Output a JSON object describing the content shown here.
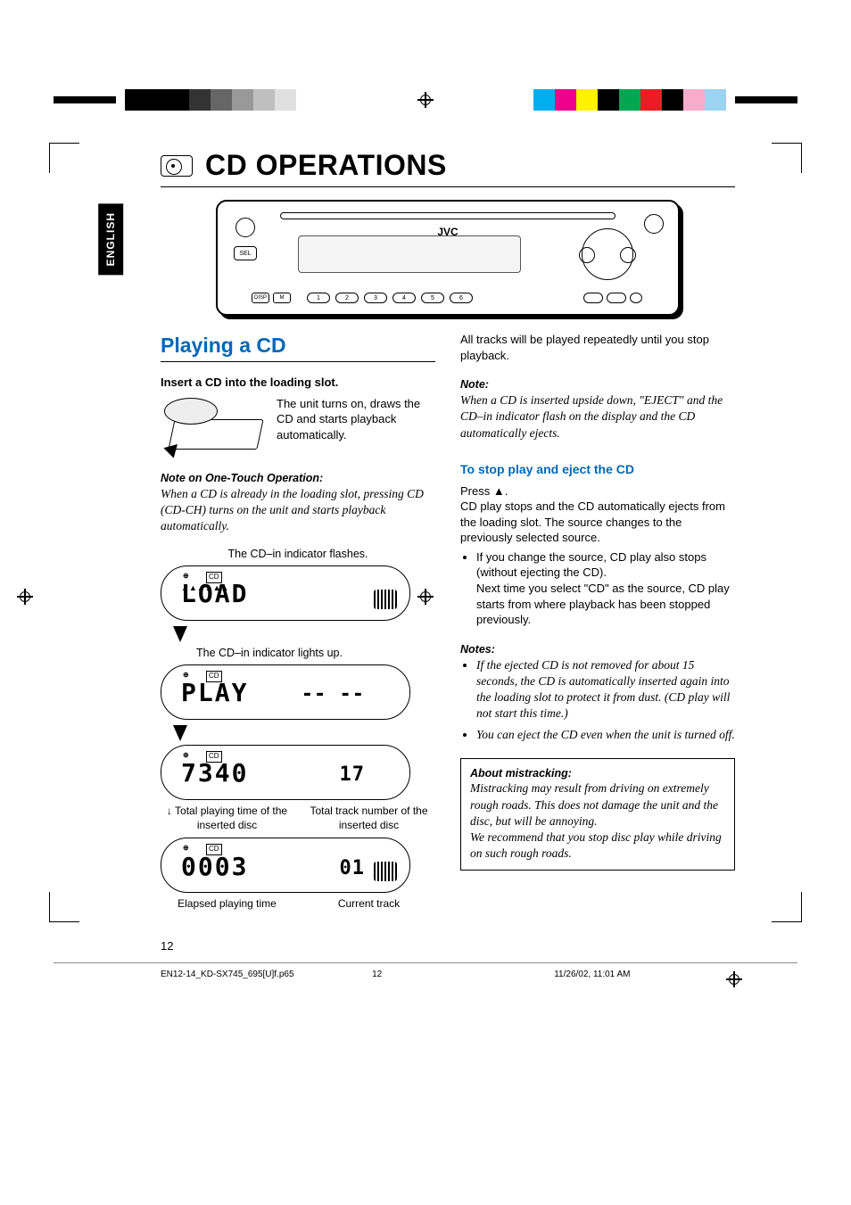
{
  "registration_bar": {
    "left_grays": [
      "#000000",
      "#000000",
      "#000000",
      "#333333",
      "#666666",
      "#999999",
      "#bfbfbf",
      "#e0e0e0",
      "#ffffff"
    ],
    "right_colors": [
      "#00aeef",
      "#ec008c",
      "#fff200",
      "#000000",
      "#00a651",
      "#ed1c24",
      "#000000",
      "#f7adc9",
      "#9bd3f0"
    ]
  },
  "language_tab": "ENGLISH",
  "title": "CD OPERATIONS",
  "radio": {
    "brand": "JVC",
    "sel_label": "SEL",
    "left_mini": [
      "DISP",
      "M"
    ],
    "num_buttons": [
      "1",
      "2",
      "3",
      "4",
      "5",
      "6"
    ]
  },
  "left_col": {
    "section": "Playing a CD",
    "step1": "Insert a CD into the loading slot.",
    "step1_body": "The unit turns on, draws the CD and starts playback automatically.",
    "note1_head": "Note on One-Touch Operation:",
    "note1_body": "When a CD is already in the loading slot, pressing CD (CD-CH) turns on the unit and starts playback automatically.",
    "cap_flash": "The CD–in indicator flashes.",
    "cap_light": "The CD–in indicator lights up.",
    "cap_split_a1": "Total playing time of the inserted disc",
    "cap_split_a2": "Total track number of the inserted disc",
    "cap_split_b1": "Elapsed playing time",
    "cap_split_b2": "Current track",
    "lcds": [
      {
        "big": "LOAD",
        "small": "",
        "showTicks": true,
        "showEq": true
      },
      {
        "big": "PLAY",
        "small": "-- --",
        "showTicks": false,
        "showEq": false
      },
      {
        "big": "7340",
        "small": "17",
        "showTicks": false,
        "showEq": false
      },
      {
        "big": "0003",
        "small": "01",
        "showTicks": false,
        "showEq": true
      }
    ]
  },
  "right_col": {
    "intro": "All tracks will be played repeatedly until you stop playback.",
    "note_head": "Note:",
    "note_body": "When a CD is inserted upside down, \"EJECT\" and the CD–in indicator flash on the display and the CD automatically ejects.",
    "stop_head": "To stop play and eject the CD",
    "stop_press": "Press ▲.",
    "stop_body": "CD play stops and the CD automatically ejects from the loading slot. The source changes to the previously selected source.",
    "stop_bullet": "If you change the source, CD play also stops (without ejecting the CD).",
    "stop_bullet_more": "Next time you select \"CD\" as the source, CD play starts from where playback has been stopped previously.",
    "notes_head": "Notes:",
    "notes": [
      "If the ejected CD is not removed for about 15 seconds, the CD is automatically inserted again into the loading slot to protect it from dust. (CD play will not start this time.)",
      "You can eject the CD even when the unit is turned off."
    ],
    "box_head": "About mistracking:",
    "box_body1": "Mistracking may result from driving on extremely rough roads. This does not damage the unit and the disc, but will be annoying.",
    "box_body2": "We recommend that you stop disc play while driving on such rough roads."
  },
  "page_number": "12",
  "footer": {
    "file": "EN12-14_KD-SX745_695[U]f.p65",
    "page": "12",
    "timestamp": "11/26/02, 11:01 AM"
  }
}
